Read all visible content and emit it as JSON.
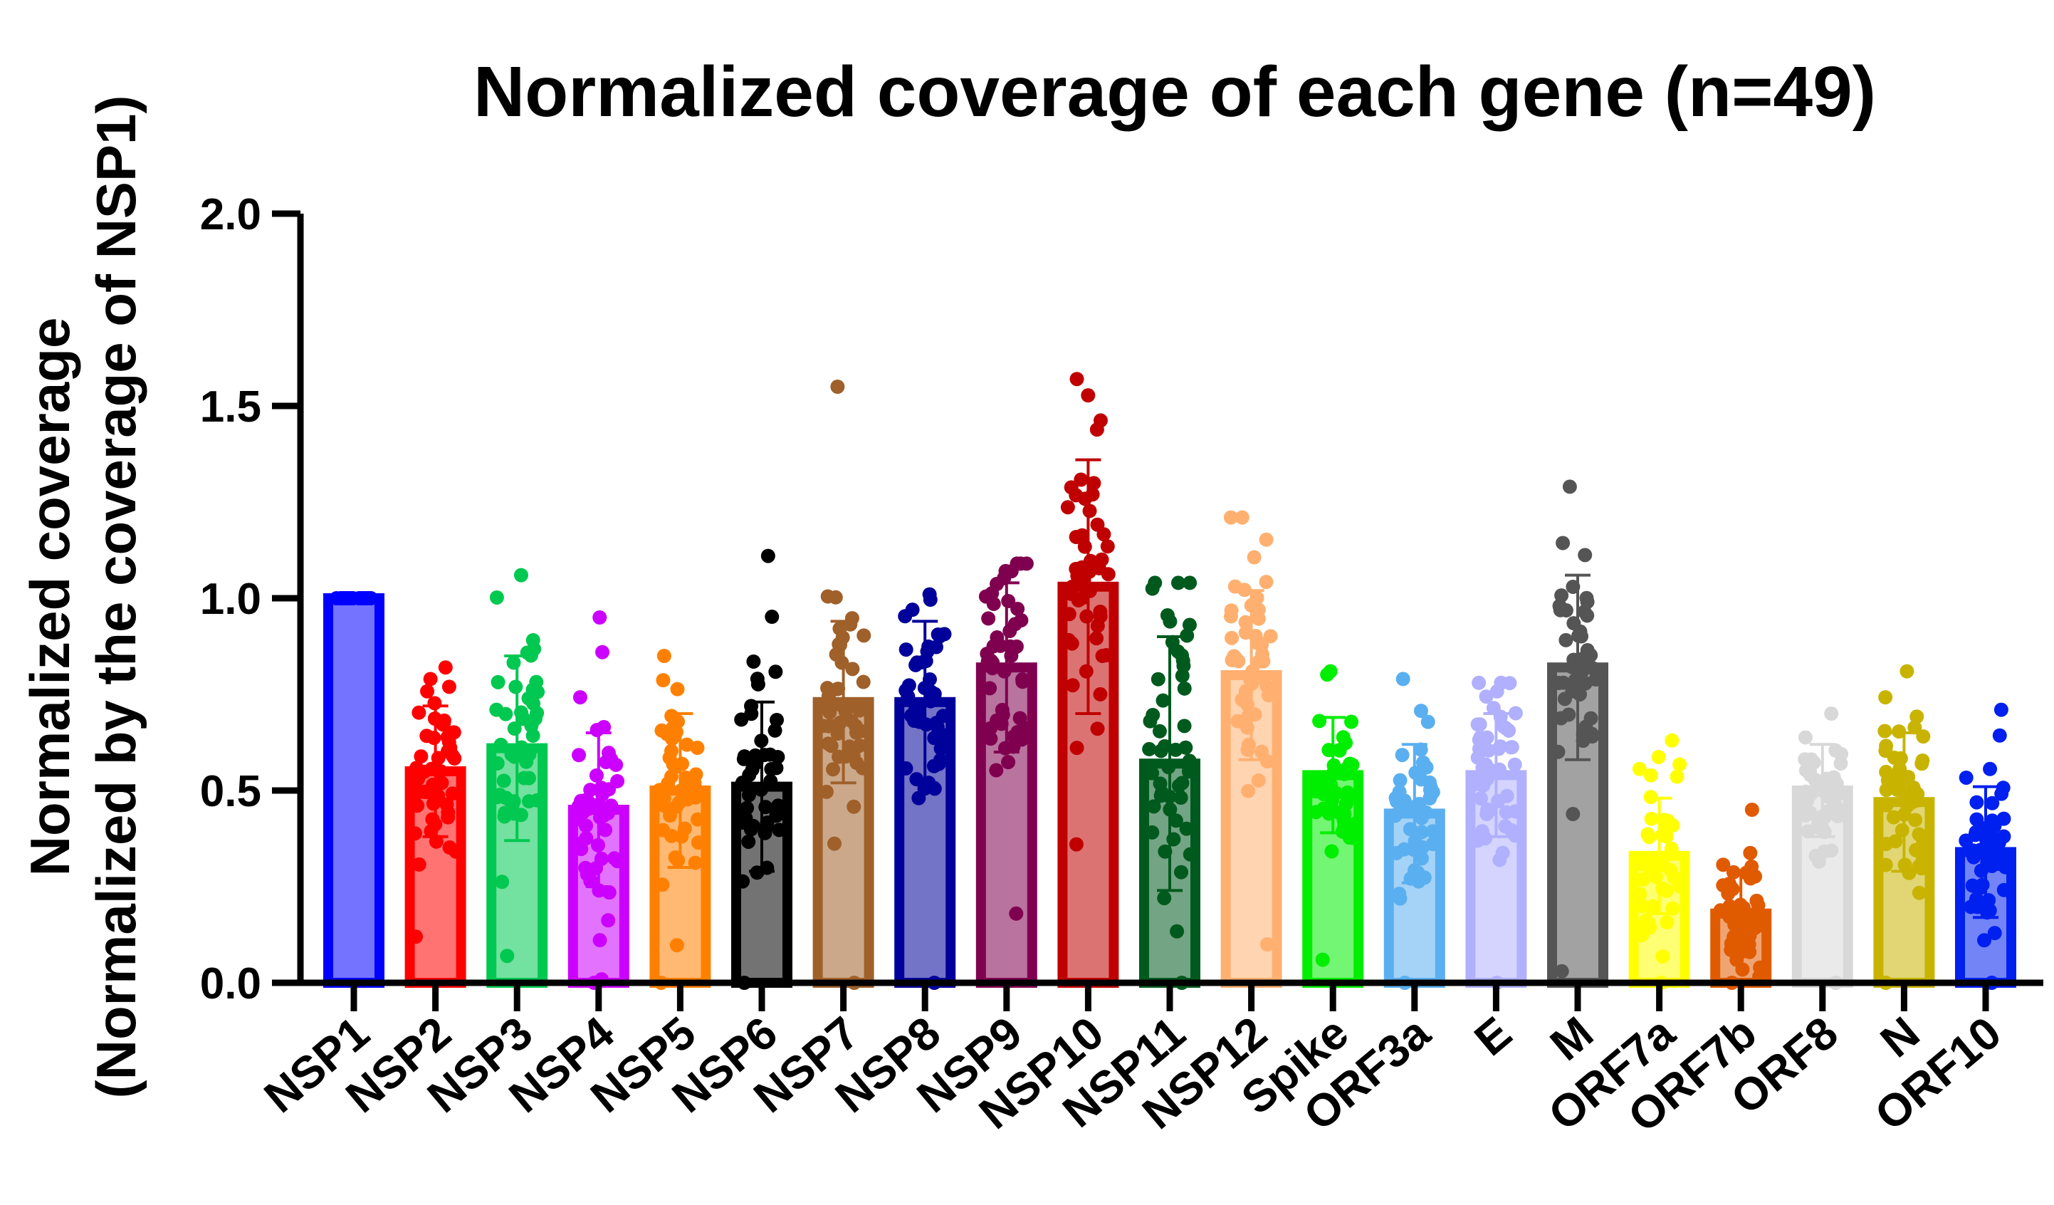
{
  "chart_data": {
    "type": "bar",
    "title": "Normalized coverage of each gene (n=49)",
    "xlabel": "",
    "ylabel": "Normalized coverage",
    "ylabel2": "(Normalized by the coverage of NSP1)",
    "ylim": [
      0,
      2.0
    ],
    "yticks": [
      "0.0",
      "0.5",
      "1.0",
      "1.5",
      "2.0"
    ],
    "grid": false,
    "legend": "none",
    "categories": [
      "NSP1",
      "NSP2",
      "NSP3",
      "NSP4",
      "NSP5",
      "NSP6",
      "NSP7",
      "NSP8",
      "NSP9",
      "NSP10",
      "NSP11",
      "NSP12",
      "Spike",
      "ORF3a",
      "E",
      "M",
      "ORF7a",
      "ORF7b",
      "ORF8",
      "N",
      "ORF10"
    ],
    "values": [
      1.0,
      0.55,
      0.61,
      0.45,
      0.5,
      0.51,
      0.73,
      0.73,
      0.82,
      1.03,
      0.57,
      0.8,
      0.54,
      0.44,
      0.54,
      0.82,
      0.33,
      0.18,
      0.5,
      0.47,
      0.34
    ],
    "error": [
      0.0,
      0.17,
      0.24,
      0.2,
      0.2,
      0.22,
      0.21,
      0.21,
      0.22,
      0.33,
      0.33,
      0.22,
      0.15,
      0.18,
      0.16,
      0.24,
      0.15,
      0.1,
      0.12,
      0.18,
      0.17
    ],
    "maxima": [
      1.0,
      0.82,
      1.06,
      0.95,
      0.85,
      1.11,
      1.55,
      1.01,
      1.09,
      1.57,
      1.04,
      1.21,
      0.81,
      0.79,
      0.78,
      1.29,
      0.63,
      0.45,
      0.7,
      0.81,
      0.71
    ],
    "minima": [
      1.0,
      0.12,
      0.07,
      0.0,
      0.0,
      0.0,
      0.0,
      0.0,
      0.18,
      0.36,
      0.0,
      0.1,
      0.06,
      0.0,
      0.0,
      0.03,
      0.0,
      0.0,
      0.0,
      0.0,
      0.0
    ],
    "colors": [
      "#0000FF",
      "#FF0000",
      "#00C850",
      "#CC00FF",
      "#FF8000",
      "#000000",
      "#A0602A",
      "#00009A",
      "#800050",
      "#C00000",
      "#005A1E",
      "#FFB070",
      "#00EE00",
      "#5AAFF0",
      "#B0B0FF",
      "#555555",
      "#FFFF00",
      "#E05A00",
      "#D8D8D8",
      "#C8B400",
      "#0020F0"
    ],
    "n": 49
  }
}
